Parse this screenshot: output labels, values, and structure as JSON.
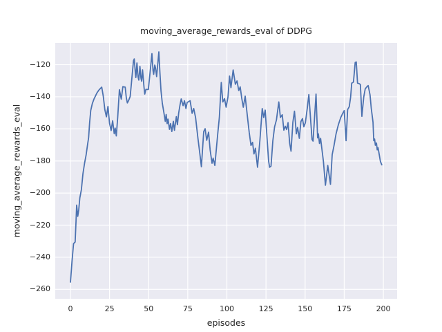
{
  "chart_data": {
    "type": "line",
    "title": "moving_average_rewards_eval of DDPG",
    "xlabel": "episodes",
    "ylabel": "moving_average_rewards_eval",
    "x_ticks": [
      0,
      25,
      50,
      75,
      100,
      125,
      150,
      175,
      200
    ],
    "y_ticks": [
      -120,
      -140,
      -160,
      -180,
      -200,
      -220,
      -240,
      -260
    ],
    "xlim": [
      -9.7,
      208.8
    ],
    "ylim": [
      -265.9,
      -106.4
    ],
    "grid": true,
    "legend_position": "none",
    "colors": {
      "line": "#4c72b0",
      "axes_background": "#eaeaf2",
      "grid": "#ffffff",
      "text": "#262626"
    },
    "series": [
      {
        "name": "moving_average_rewards_eval",
        "x": [
          0,
          1,
          2,
          3,
          3.6,
          4,
          4.7,
          5.3,
          6,
          7,
          8,
          9,
          10,
          11,
          11.6,
          12.3,
          13,
          14,
          15,
          16,
          17,
          18,
          19,
          20,
          21,
          22,
          23,
          24,
          25,
          26,
          27,
          28,
          28.6,
          29.3,
          30.2,
          31.3,
          32.5,
          33.5,
          35,
          35.7,
          36.4,
          37.2,
          38.2,
          40.3,
          40.8,
          41.5,
          41.8,
          42.5,
          43.2,
          43.7,
          44.4,
          45.1,
          45.5,
          46.1,
          47,
          47.5,
          48.2,
          49.8,
          51,
          52.1,
          52.8,
          53.2,
          53.9,
          54.4,
          55.1,
          56.5,
          57.2,
          57.9,
          58.7,
          59.5,
          60.6,
          61.2,
          61.8,
          62.4,
          63.3,
          64,
          64.8,
          65.8,
          66.5,
          67.7,
          68.4,
          69.2,
          70,
          70.8,
          72,
          72.9,
          73.8,
          74.6,
          76.5,
          77.8,
          78.8,
          80,
          81.5,
          82.6,
          83.7,
          85.2,
          86.1,
          87.1,
          88.3,
          89.3,
          90.5,
          91.2,
          92.3,
          93.3,
          94.3,
          95.2,
          96.4,
          97.4,
          98.5,
          99.5,
          100.7,
          101.7,
          102.6,
          104,
          105.4,
          106.5,
          107.6,
          108.5,
          109.5,
          110.5,
          111.7,
          113.2,
          114.3,
          115.4,
          116.4,
          117.3,
          118.2,
          119.6,
          121.1,
          122.6,
          123.5,
          124.5,
          125.7,
          126.7,
          127.3,
          128.2,
          129.4,
          130.5,
          131.7,
          133.2,
          134.2,
          135.4,
          136.4,
          137.4,
          138.2,
          139.1,
          140.1,
          141,
          142.2,
          143.2,
          144.4,
          145.2,
          146.3,
          147.3,
          148.3,
          149.2,
          150.2,
          151.4,
          152.4,
          154.4,
          155.1,
          157,
          158,
          158.5,
          159.2,
          159.9,
          161.7,
          163,
          164.5,
          166.2,
          167.3,
          168.4,
          169.8,
          171.3,
          172.8,
          173.8,
          175,
          176.2,
          177.2,
          178.2,
          179.1,
          179.8,
          180.9,
          182,
          182.7,
          183.5,
          184.5,
          185.3,
          186.3,
          187.5,
          188.4,
          189.4,
          190.3,
          191.5,
          192.3,
          193.4,
          193.9,
          194.4,
          194.9,
          195.6,
          196.1,
          196.6,
          197.5,
          198.1,
          199
        ],
        "y": [
          -255.5,
          -243,
          -231.5,
          -230.5,
          -217.5,
          -207.5,
          -214.5,
          -210.5,
          -203,
          -198,
          -188,
          -181.5,
          -176.5,
          -169.5,
          -165.5,
          -156,
          -148.5,
          -144.2,
          -141.5,
          -139.5,
          -137.5,
          -136,
          -135,
          -134,
          -139.5,
          -148,
          -152.5,
          -146,
          -156.5,
          -161,
          -155,
          -163,
          -159.5,
          -164.4,
          -153,
          -135.6,
          -141.5,
          -133.7,
          -134,
          -140.7,
          -143.8,
          -142.3,
          -139.8,
          -117.5,
          -116.4,
          -125.3,
          -128,
          -118.9,
          -127.4,
          -129.6,
          -121,
          -128.3,
          -130.3,
          -123.2,
          -133.9,
          -138.3,
          -135.4,
          -135.4,
          -124,
          -113.1,
          -123.8,
          -126,
          -120.2,
          -122,
          -127.4,
          -112,
          -125.3,
          -136.1,
          -144,
          -148.5,
          -155.3,
          -151,
          -156.7,
          -153.9,
          -160.3,
          -156.7,
          -161.6,
          -155.3,
          -160.9,
          -152.4,
          -157.4,
          -150.2,
          -145.2,
          -141.3,
          -145.5,
          -142.5,
          -147.3,
          -143.5,
          -142.5,
          -150.3,
          -147.3,
          -152.9,
          -165.9,
          -174.5,
          -183.6,
          -161.6,
          -159.9,
          -167.1,
          -162.1,
          -173.2,
          -181.4,
          -178.2,
          -182.8,
          -172.4,
          -161.6,
          -152.9,
          -131.1,
          -143.2,
          -141.2,
          -146.5,
          -140.1,
          -127.1,
          -134.3,
          -123.3,
          -132.2,
          -130.1,
          -136.1,
          -133.8,
          -140.8,
          -146.5,
          -139.6,
          -152.9,
          -162.4,
          -170.3,
          -168.4,
          -175.6,
          -172.1,
          -183.9,
          -167.3,
          -147.3,
          -152.9,
          -148.3,
          -165.9,
          -180.3,
          -183.9,
          -183.2,
          -167.3,
          -158.7,
          -154.4,
          -143.2,
          -152.9,
          -151.2,
          -160.8,
          -158.4,
          -160.4,
          -156.1,
          -168.8,
          -173.9,
          -155.8,
          -149,
          -163.1,
          -159.1,
          -165.9,
          -155.4,
          -153.6,
          -158.7,
          -156.1,
          -146.9,
          -138.6,
          -166.6,
          -167.6,
          -138.3,
          -165.6,
          -163.1,
          -169.1,
          -165.9,
          -180.3,
          -195.1,
          -182.8,
          -194.5,
          -176,
          -170.7,
          -163.1,
          -157.3,
          -152.9,
          -150.8,
          -148.6,
          -167.3,
          -147.9,
          -146.2,
          -140.1,
          -131.5,
          -130.8,
          -118.6,
          -118.3,
          -131.5,
          -131.8,
          -132.3,
          -152.2,
          -140.1,
          -135.1,
          -133.8,
          -133,
          -138.8,
          -147.3,
          -155.8,
          -167.3,
          -166.3,
          -170.2,
          -168.8,
          -173.1,
          -171.7,
          -176.7,
          -180.3,
          -182.4
        ]
      }
    ]
  }
}
